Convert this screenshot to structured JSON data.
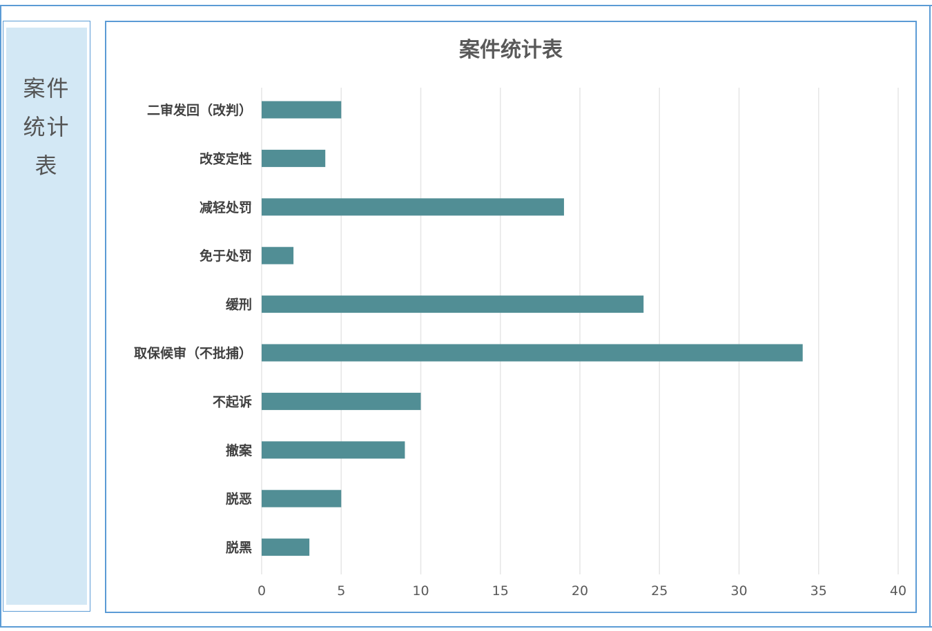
{
  "side_panel": {
    "title_lines": [
      "案件",
      "统计",
      "表"
    ]
  },
  "chart_data": {
    "type": "bar",
    "orientation": "horizontal",
    "title": "案件统计表",
    "categories": [
      "二审发回（改判）",
      "改变定性",
      "减轻处罚",
      "免于处罚",
      "缓刑",
      "取保候审（不批捕）",
      "不起诉",
      "撤案",
      "脱恶",
      "脱黑"
    ],
    "values": [
      5,
      4,
      19,
      2,
      24,
      34,
      10,
      9,
      5,
      3
    ],
    "xlim": [
      0,
      40
    ],
    "xticks": [
      0,
      5,
      10,
      15,
      20,
      25,
      30,
      35,
      40
    ],
    "xlabel": "",
    "ylabel": "",
    "grid": "vertical",
    "bar_color": "#518e95",
    "grid_color": "#e6e6e6"
  }
}
